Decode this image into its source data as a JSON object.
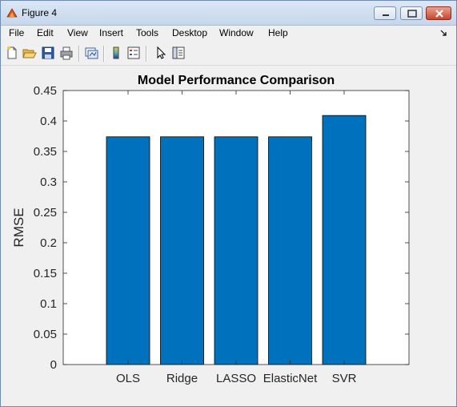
{
  "window": {
    "title": "Figure 4",
    "buttons": {
      "minimize": "minimize",
      "maximize": "maximize",
      "close": "close"
    }
  },
  "menubar": {
    "items": [
      {
        "label": "File"
      },
      {
        "label": "Edit"
      },
      {
        "label": "View"
      },
      {
        "label": "Insert"
      },
      {
        "label": "Tools"
      },
      {
        "label": "Desktop"
      },
      {
        "label": "Window"
      },
      {
        "label": "Help"
      }
    ]
  },
  "toolbar": {
    "icons": [
      "new-figure-icon",
      "open-file-icon",
      "save-icon",
      "print-icon",
      "link-plot-icon",
      "colorbar-icon",
      "legend-icon",
      "pointer-icon",
      "property-editor-icon"
    ]
  },
  "colors": {
    "bar_fill": "#0072bd",
    "bar_edge": "#000000",
    "axes_bg": "#ffffff",
    "figure_bg": "#f0f0f0"
  },
  "chart_data": {
    "type": "bar",
    "title": "Model Performance Comparison",
    "xlabel": "",
    "ylabel": "RMSE",
    "categories": [
      "OLS",
      "Ridge",
      "LASSO",
      "ElasticNet",
      "SVR"
    ],
    "values": [
      0.374,
      0.374,
      0.374,
      0.374,
      0.409
    ],
    "ylim": [
      0,
      0.45
    ],
    "yticks": [
      "0",
      "0.05",
      "0.1",
      "0.15",
      "0.2",
      "0.25",
      "0.3",
      "0.35",
      "0.4",
      "0.45"
    ],
    "grid": false
  }
}
